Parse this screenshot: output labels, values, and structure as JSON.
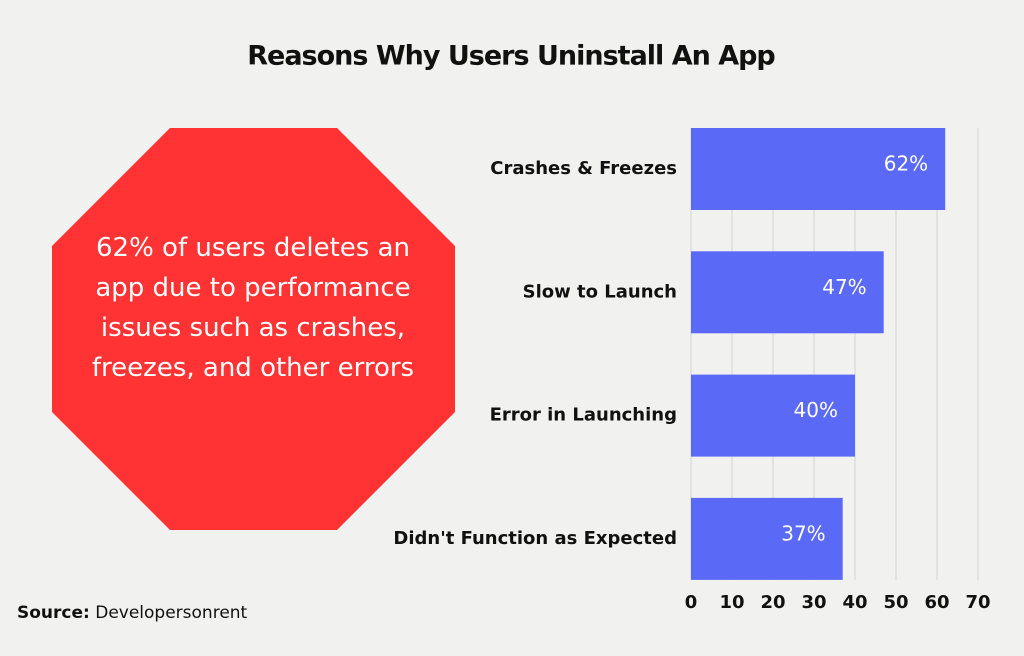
{
  "chart_data": {
    "type": "hbar",
    "title": "Reasons Why Users Uninstall An App",
    "categories": [
      "Crashes & Freezes",
      "Slow to Launch",
      "Error in Launching",
      "Didn't Function as Expected"
    ],
    "values": [
      62,
      47,
      40,
      37
    ],
    "value_labels": [
      "62%",
      "47%",
      "40%",
      "37%"
    ],
    "color": "#5a6af6",
    "xlim": [
      0,
      70
    ],
    "xticks": [
      0,
      10,
      20,
      30,
      40,
      50,
      60,
      70
    ],
    "grid": true,
    "annotation": "62% of users deletes an app due to performance issues such as crashes, freezes, and other errors",
    "source_label": "Source:",
    "source": "Developersonrent"
  }
}
